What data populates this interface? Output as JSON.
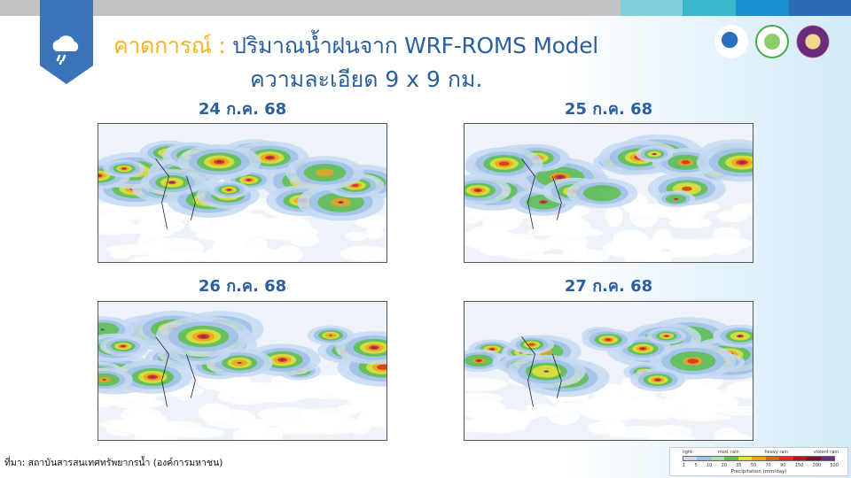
{
  "header": {
    "title_highlight": "คาดการณ์ :",
    "title_rest": "ปริมาณน้ำฝนจาก WRF-ROMS Model",
    "subtitle": "ความละเอียด 9 x 9 กม.",
    "topbar_colors": [
      "#c2c2c2",
      "#7fcfdc",
      "#3bb8cc",
      "#1a8fd0",
      "#2a6db5"
    ],
    "accent_color": "#f5b51e",
    "title_color": "#2b5f9e"
  },
  "logos": [
    "water-drop-logo",
    "leaf-logo-hsn",
    "royal-seal-logo"
  ],
  "maps": [
    {
      "date": "24 ก.ค. 68"
    },
    {
      "date": "25 ก.ค. 68"
    },
    {
      "date": "26 ก.ค. 68"
    },
    {
      "date": "27 ก.ค. 68"
    }
  ],
  "source": "ที่มา: สถาบันสารสนเทศทรัพยากรน้ำ (องค์การมหาชน)",
  "legend": {
    "categories": [
      "light",
      "mod. rain",
      "heavy rain",
      "violent rain"
    ],
    "ticks": [
      "1",
      "5",
      "10",
      "20",
      "35",
      "50",
      "70",
      "90",
      "150",
      "200",
      "500"
    ],
    "colors": [
      "#c6d9f1",
      "#9dbfe8",
      "#a8e0b0",
      "#5cbf4a",
      "#e8e03a",
      "#f0a020",
      "#d86a10",
      "#d83020",
      "#b01818",
      "#801030",
      "#6a2a8a"
    ],
    "caption": "Precipitation (mm/day)"
  }
}
